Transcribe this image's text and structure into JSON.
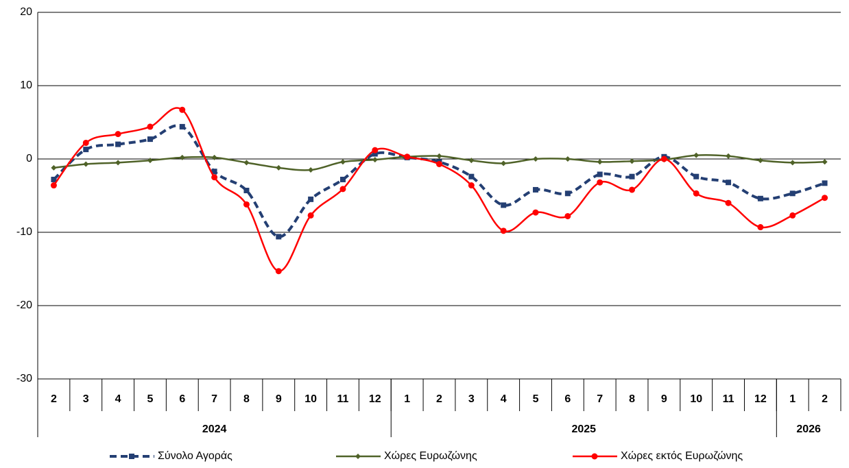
{
  "chart_data": {
    "type": "line",
    "groups": [
      {
        "label": "2024",
        "categories": [
          "2",
          "3",
          "4",
          "5",
          "6",
          "7",
          "8",
          "9",
          "10",
          "11",
          "12"
        ]
      },
      {
        "label": "2025",
        "categories": [
          "1",
          "2",
          "3",
          "4",
          "5",
          "6",
          "7",
          "8",
          "9",
          "10",
          "11",
          "12"
        ]
      },
      {
        "label": "2026",
        "categories": [
          "1",
          "2"
        ]
      }
    ],
    "series": [
      {
        "name": "Σύνολο Αγοράς",
        "color": "#243f73",
        "marker": "square",
        "dashed": true,
        "values": [
          -2.8,
          1.3,
          2.0,
          2.7,
          4.4,
          -1.7,
          -4.3,
          -10.6,
          -5.5,
          -2.8,
          0.7,
          0.2,
          -0.4,
          -2.4,
          -6.3,
          -4.2,
          -4.7,
          -2.1,
          -2.4,
          0.3,
          -2.4,
          -3.2,
          -5.4,
          -4.7,
          -3.3
        ]
      },
      {
        "name": "Χώρες Ευρωζώνης",
        "color": "#4f6228",
        "marker": "diamond",
        "dashed": false,
        "values": [
          -1.2,
          -0.7,
          -0.5,
          -0.2,
          0.2,
          0.2,
          -0.5,
          -1.2,
          -1.5,
          -0.4,
          -0.1,
          0.3,
          0.4,
          -0.2,
          -0.6,
          0,
          0,
          -0.4,
          -0.3,
          -0.1,
          0.5,
          0.4,
          -0.2,
          -0.5,
          -0.4
        ]
      },
      {
        "name": "Χώρες εκτός Ευρωζώνης",
        "color": "#ff0000",
        "marker": "circle",
        "dashed": false,
        "values": [
          -3.6,
          2.2,
          3.4,
          4.4,
          6.7,
          -2.5,
          -6.2,
          -15.3,
          -7.7,
          -4.1,
          1.2,
          0.3,
          -0.7,
          -3.6,
          -9.8,
          -7.3,
          -7.8,
          -3.2,
          -4.2,
          0,
          -4.7,
          -6.0,
          -9.3,
          -7.7,
          -5.3
        ]
      }
    ],
    "ylim": [
      -30,
      20
    ],
    "yticks": [
      -30,
      -20,
      -10,
      0,
      10,
      20
    ],
    "grid": true,
    "smooth": true,
    "legend": "bottom"
  }
}
